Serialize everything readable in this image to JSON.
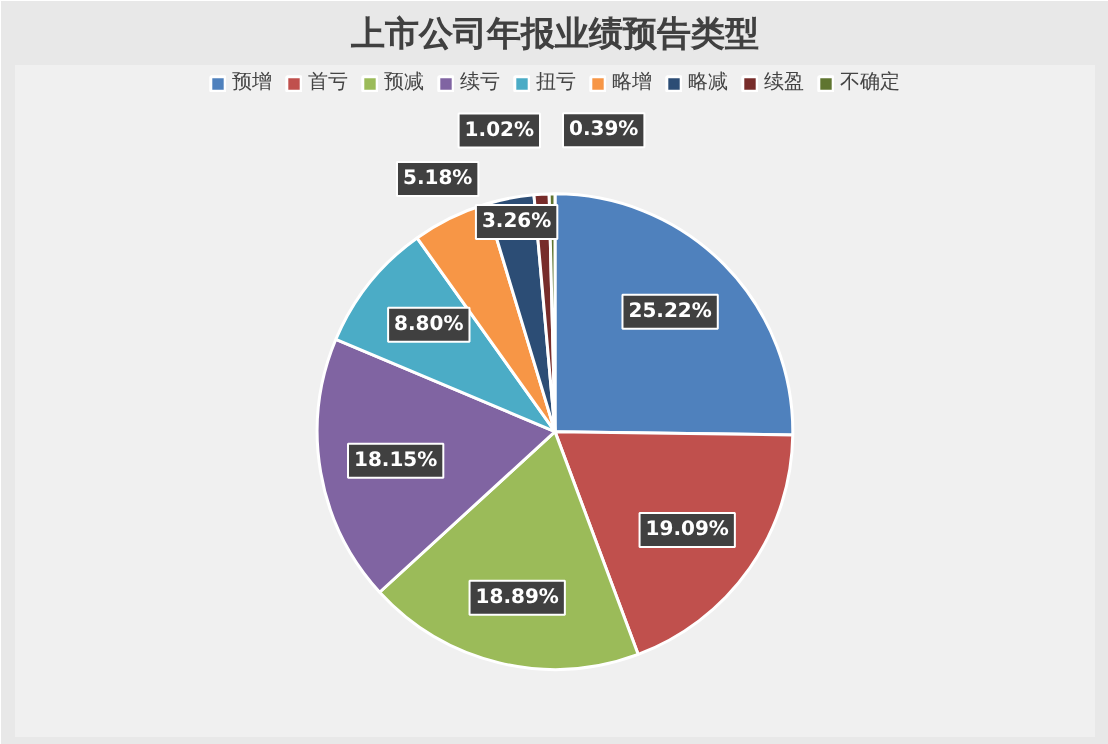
{
  "chart_data": {
    "type": "pie",
    "title": "上市公司年报业绩预告类型",
    "categories": [
      "预增",
      "首亏",
      "预减",
      "续亏",
      "扭亏",
      "略增",
      "略减",
      "续盈",
      "不确定"
    ],
    "values": [
      25.22,
      19.09,
      18.89,
      18.15,
      8.8,
      5.18,
      3.26,
      1.02,
      0.39
    ],
    "value_labels": [
      "25.22%",
      "19.09%",
      "18.89%",
      "18.15%",
      "8.80%",
      "5.18%",
      "3.26%",
      "1.02%",
      "0.39%"
    ],
    "colors": [
      "#4f81bd",
      "#c0504d",
      "#9bbb59",
      "#8064a2",
      "#4bacc6",
      "#f79646",
      "#2c4d75",
      "#772c2a",
      "#5f7530"
    ],
    "legend": "top"
  }
}
